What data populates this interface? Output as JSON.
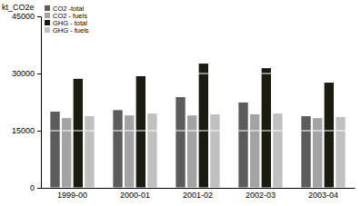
{
  "chart_data": {
    "type": "bar",
    "y_label": "kt_CO2e",
    "categories": [
      "1999-00",
      "2000-01",
      "2001-02",
      "2002-03",
      "2003-04"
    ],
    "series": [
      {
        "name": "CO2 -total",
        "color": "#5c5c5c",
        "values": [
          20000,
          20400,
          23800,
          22400,
          18800
        ]
      },
      {
        "name": "CO2 - fuels",
        "color": "#a3a3a3",
        "values": [
          18300,
          19000,
          19000,
          19300,
          18300
        ]
      },
      {
        "name": "GHG - total",
        "color": "#1b1b0f",
        "values": [
          28600,
          29300,
          32600,
          31400,
          27600
        ]
      },
      {
        "name": "GHG - fuels",
        "color": "#c0c0c0",
        "values": [
          18800,
          19500,
          19300,
          19500,
          18600
        ]
      }
    ],
    "ylim": [
      0,
      45000
    ],
    "yticks": [
      0,
      15000,
      30000,
      45000
    ],
    "grid": true,
    "legend": "top-left"
  }
}
